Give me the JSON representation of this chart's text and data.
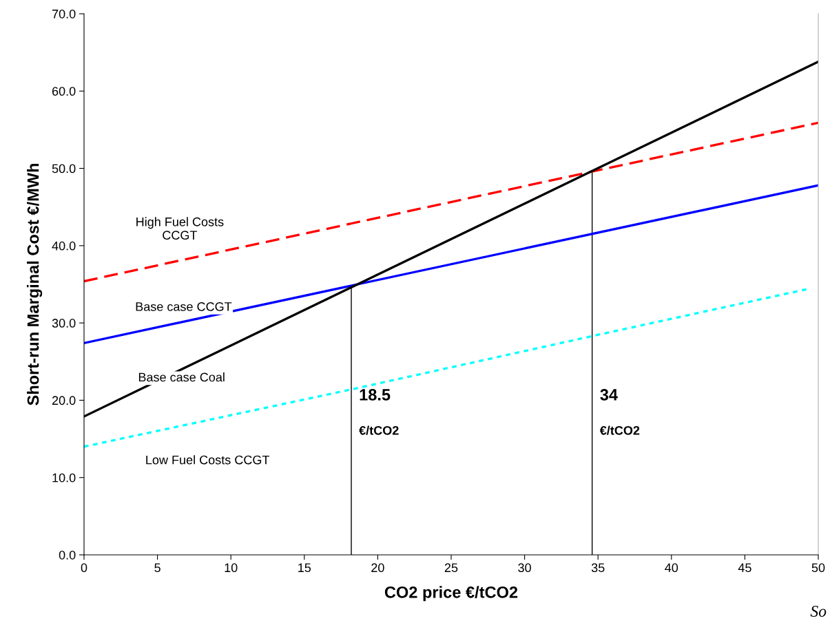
{
  "chart_data": {
    "type": "line",
    "xlabel": "CO2 price €/tCO2",
    "ylabel": "Short-run Marginal Cost €/MWh",
    "xlim": [
      0,
      50
    ],
    "xticks": [
      0,
      5,
      10,
      15,
      20,
      25,
      30,
      35,
      40,
      45,
      50
    ],
    "ylim": [
      0,
      70
    ],
    "yticks": [
      {
        "value": 0,
        "label": "0.0"
      },
      {
        "value": 10,
        "label": "10.0"
      },
      {
        "value": 20,
        "label": "20.0"
      },
      {
        "value": 30,
        "label": "30.0"
      },
      {
        "value": 40,
        "label": "40.0"
      },
      {
        "value": 50,
        "label": "50.0"
      },
      {
        "value": 60,
        "label": "60.0"
      },
      {
        "value": 70,
        "label": "70.0"
      }
    ],
    "grid": false,
    "legend": false,
    "series": [
      {
        "name": "18.5\n€/tCO2",
        "color": "#000000",
        "x": [
          18.2,
          18.2
        ],
        "values": [
          0,
          34.8
        ],
        "line_style": "solid"
      },
      {
        "name": "34\n€/tCO2",
        "color": "#000000",
        "x": [
          34.6,
          34.6
        ],
        "values": [
          0,
          49.6
        ],
        "line_style": "solid"
      },
      {
        "name": "Low Fuel Costs CCGT",
        "color": "#00ffff",
        "x": [
          0,
          18.2,
          34.6,
          49.3
        ],
        "values": [
          14.0,
          21.4,
          28.3,
          34.4
        ],
        "line_style": "dotted"
      },
      {
        "name": "Base case CCGT",
        "color": "#0000ff",
        "x": [
          0,
          50
        ],
        "values": [
          27.4,
          47.8
        ],
        "line_style": "solid"
      },
      {
        "name": "High Fuel Costs\nCCGT",
        "color": "#ff0000",
        "x": [
          0,
          50
        ],
        "values": [
          35.4,
          55.9
        ],
        "line_style": "dashed"
      },
      {
        "name": "Base case Coal",
        "color": "#000000",
        "x": [
          0,
          50
        ],
        "values": [
          17.9,
          63.8
        ],
        "line_style": "solid"
      }
    ],
    "annotations": [
      "So"
    ]
  }
}
